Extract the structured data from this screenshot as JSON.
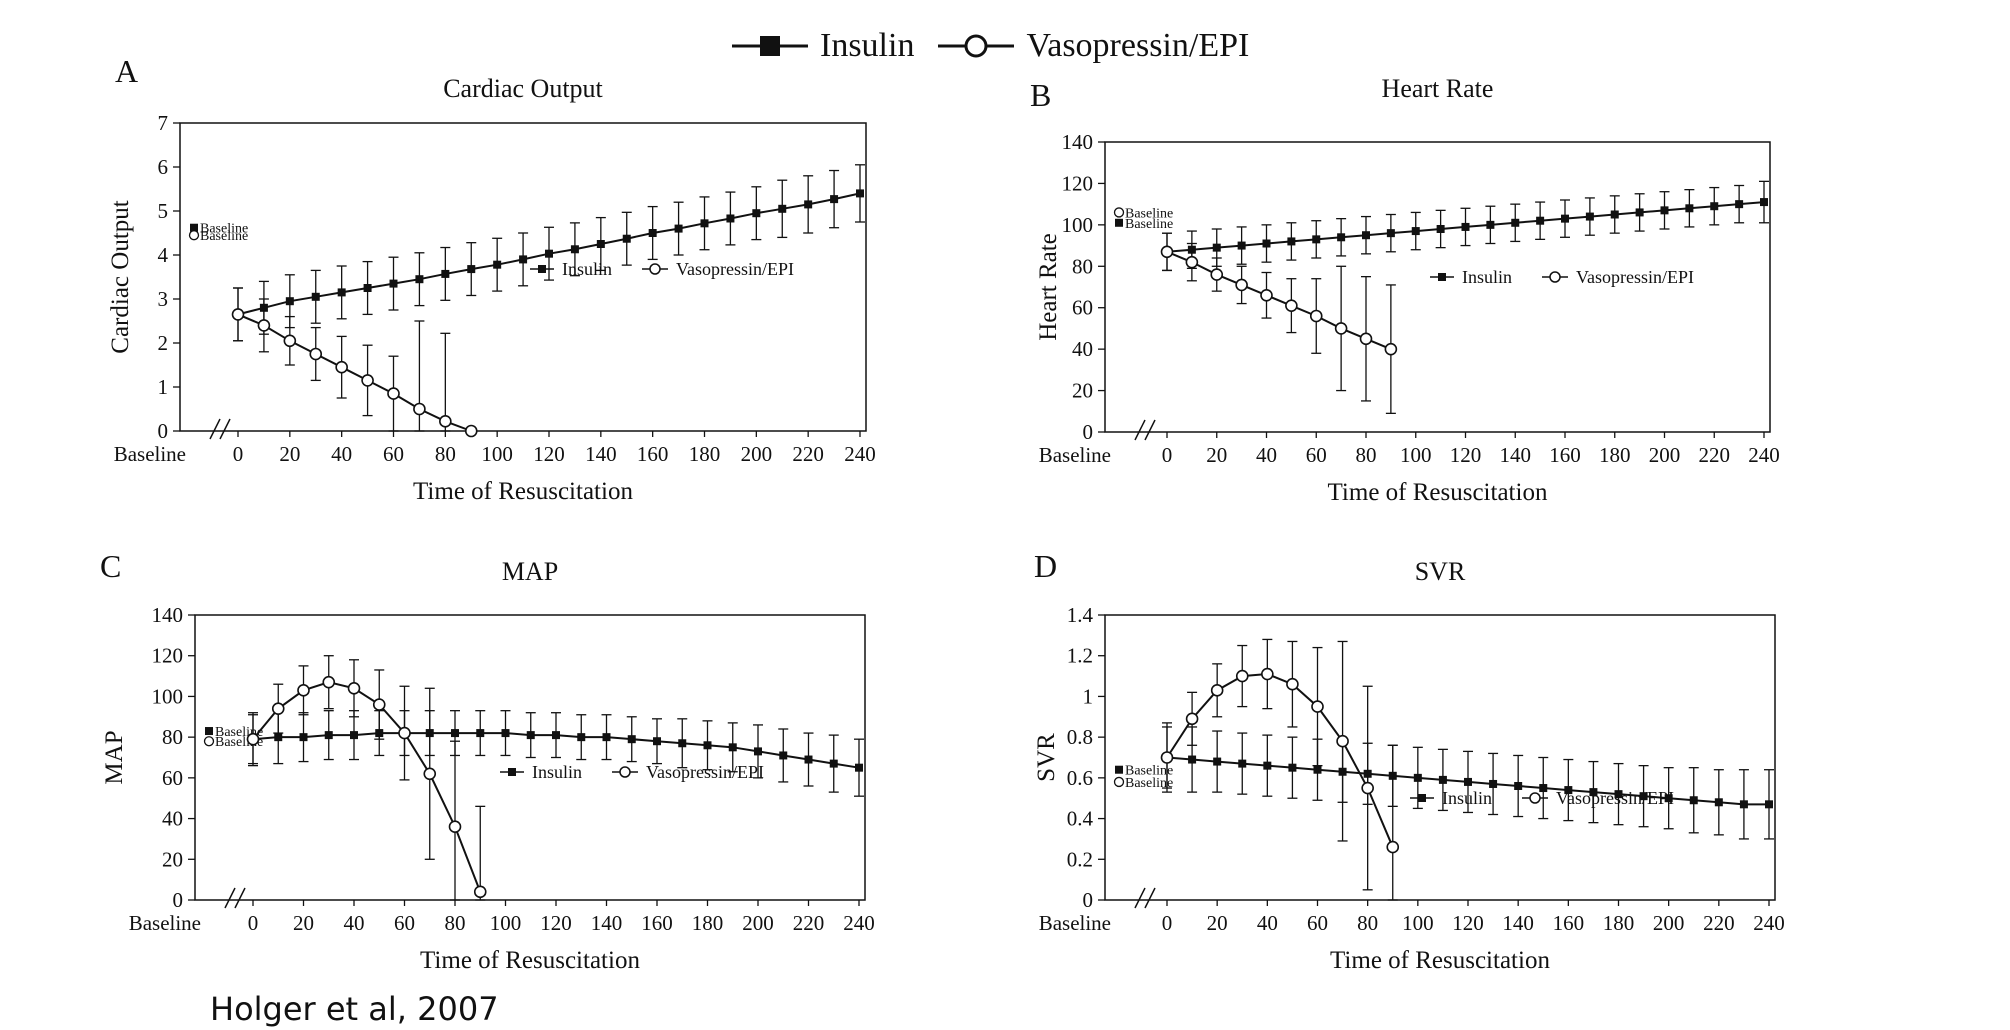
{
  "legend": {
    "insulin_label": "Insulin",
    "vaso_label": "Vasopressin/EPI"
  },
  "source": "Holger et al, 2007",
  "colors": {
    "line": "#111111",
    "background": "#ffffff"
  },
  "chart_data": [
    {
      "letter": "A",
      "type": "line",
      "title": "Cardiac Output",
      "ylabel": "Cardiac Output",
      "xlabel": "Time of Resuscitation",
      "ylim": [
        0,
        7
      ],
      "yticks": [
        0,
        1,
        2,
        3,
        4,
        5,
        6,
        7
      ],
      "xlim": [
        0,
        240
      ],
      "xticks": [
        0,
        20,
        40,
        60,
        80,
        100,
        120,
        140,
        160,
        180,
        200,
        220,
        240
      ],
      "baseline_tick_label": "Baseline",
      "baseline_points": {
        "label": "Baseline",
        "insulin": 4.62,
        "vaso": 4.45
      },
      "inline_legend": {
        "insulin": "Insulin",
        "vaso": "Vasopressin/EPI",
        "position": "right-middle"
      },
      "series": [
        {
          "name": "Insulin",
          "marker": "filled-square",
          "x": [
            0,
            10,
            20,
            30,
            40,
            50,
            60,
            70,
            80,
            90,
            100,
            110,
            120,
            130,
            140,
            150,
            160,
            170,
            180,
            190,
            200,
            210,
            220,
            230,
            240
          ],
          "y": [
            2.65,
            2.8,
            2.95,
            3.05,
            3.15,
            3.25,
            3.35,
            3.45,
            3.57,
            3.68,
            3.78,
            3.9,
            4.03,
            4.13,
            4.25,
            4.37,
            4.5,
            4.6,
            4.72,
            4.83,
            4.95,
            5.05,
            5.15,
            5.27,
            5.4
          ],
          "err": [
            0.6,
            0.6,
            0.6,
            0.6,
            0.6,
            0.6,
            0.6,
            0.6,
            0.6,
            0.6,
            0.6,
            0.6,
            0.6,
            0.6,
            0.6,
            0.6,
            0.6,
            0.6,
            0.6,
            0.6,
            0.6,
            0.65,
            0.65,
            0.65,
            0.65
          ]
        },
        {
          "name": "Vasopressin/EPI",
          "marker": "open-circle",
          "x": [
            0,
            10,
            20,
            30,
            40,
            50,
            60,
            70,
            80,
            90
          ],
          "y": [
            2.65,
            2.4,
            2.05,
            1.75,
            1.45,
            1.15,
            0.85,
            0.5,
            0.22,
            0.0
          ],
          "err": [
            0.6,
            0.6,
            0.55,
            0.6,
            0.7,
            0.8,
            0.85,
            2.0,
            2.0,
            0
          ]
        }
      ]
    },
    {
      "letter": "B",
      "type": "line",
      "title": "Heart Rate",
      "ylabel": "Heart Rate",
      "xlabel": "Time of Resuscitation",
      "ylim": [
        0,
        140
      ],
      "yticks": [
        0,
        20,
        40,
        60,
        80,
        100,
        120,
        140
      ],
      "xlim": [
        0,
        240
      ],
      "xticks": [
        0,
        20,
        40,
        60,
        80,
        100,
        120,
        140,
        160,
        180,
        200,
        220,
        240
      ],
      "baseline_tick_label": "Baseline",
      "baseline_points": {
        "label": "Baseline",
        "insulin": 101,
        "vaso": 106
      },
      "inline_legend": {
        "insulin": "Insulin",
        "vaso": "Vasopressin/EPI",
        "position": "right-middle"
      },
      "series": [
        {
          "name": "Insulin",
          "marker": "filled-square",
          "x": [
            0,
            10,
            20,
            30,
            40,
            50,
            60,
            70,
            80,
            90,
            100,
            110,
            120,
            130,
            140,
            150,
            160,
            170,
            180,
            190,
            200,
            210,
            220,
            230,
            240
          ],
          "y": [
            87,
            88,
            89,
            90,
            91,
            92,
            93,
            94,
            95,
            96,
            97,
            98,
            99,
            100,
            101,
            102,
            103,
            104,
            105,
            106,
            107,
            108,
            109,
            110,
            111
          ],
          "err": [
            9,
            9,
            9,
            9,
            9,
            9,
            9,
            9,
            9,
            9,
            9,
            9,
            9,
            9,
            9,
            9,
            9,
            9,
            9,
            9,
            9,
            9,
            9,
            9,
            10
          ]
        },
        {
          "name": "Vasopressin/EPI",
          "marker": "open-circle",
          "x": [
            0,
            10,
            20,
            30,
            40,
            50,
            60,
            70,
            80,
            90
          ],
          "y": [
            87,
            82,
            76,
            71,
            66,
            61,
            56,
            50,
            45,
            40
          ],
          "err": [
            9,
            9,
            8,
            9,
            11,
            13,
            18,
            30,
            30,
            31
          ]
        }
      ]
    },
    {
      "letter": "C",
      "type": "line",
      "title": "MAP",
      "ylabel": "MAP",
      "xlabel": "Time of Resuscitation",
      "ylim": [
        0,
        140
      ],
      "yticks": [
        0,
        20,
        40,
        60,
        80,
        100,
        120,
        140
      ],
      "xlim": [
        0,
        240
      ],
      "xticks": [
        0,
        20,
        40,
        60,
        80,
        100,
        120,
        140,
        160,
        180,
        200,
        220,
        240
      ],
      "baseline_tick_label": "Baseline",
      "baseline_points": {
        "label": "Baseline",
        "insulin": 83,
        "vaso": 78
      },
      "inline_legend": {
        "insulin": "Insulin",
        "vaso": "Vasopressin/EPI",
        "position": "right-middle"
      },
      "series": [
        {
          "name": "Insulin",
          "marker": "filled-square",
          "x": [
            0,
            10,
            20,
            30,
            40,
            50,
            60,
            70,
            80,
            90,
            100,
            110,
            120,
            130,
            140,
            150,
            160,
            170,
            180,
            190,
            200,
            210,
            220,
            230,
            240
          ],
          "y": [
            79,
            80,
            80,
            81,
            81,
            82,
            82,
            82,
            82,
            82,
            82,
            81,
            81,
            80,
            80,
            79,
            78,
            77,
            76,
            75,
            73,
            71,
            69,
            67,
            65
          ],
          "err": [
            13,
            13,
            12,
            12,
            12,
            11,
            11,
            11,
            11,
            11,
            11,
            11,
            11,
            11,
            11,
            11,
            11,
            12,
            12,
            12,
            13,
            13,
            13,
            14,
            14
          ]
        },
        {
          "name": "Vasopressin/EPI",
          "marker": "open-circle",
          "x": [
            0,
            10,
            20,
            30,
            40,
            50,
            60,
            70,
            80,
            90
          ],
          "y": [
            79,
            94,
            103,
            107,
            104,
            96,
            82,
            62,
            36,
            4
          ],
          "err": [
            12,
            12,
            12,
            13,
            14,
            17,
            23,
            42,
            42,
            42
          ]
        }
      ]
    },
    {
      "letter": "D",
      "type": "line",
      "title": "SVR",
      "ylabel": "SVR",
      "xlabel": "Time of Resuscitation",
      "ylim": [
        0,
        1.4
      ],
      "yticks": [
        0,
        0.2,
        0.4,
        0.6,
        0.8,
        1,
        1.2,
        1.4
      ],
      "xlim": [
        0,
        240
      ],
      "xticks": [
        0,
        20,
        40,
        60,
        80,
        100,
        120,
        140,
        160,
        180,
        200,
        220,
        240
      ],
      "baseline_tick_label": "Baseline",
      "baseline_points": {
        "label": "Baseline",
        "insulin": 0.64,
        "vaso": 0.58
      },
      "inline_legend": {
        "insulin": "Insulin",
        "vaso": "Vasopressin/EPI",
        "position": "right-lower"
      },
      "series": [
        {
          "name": "Insulin",
          "marker": "filled-square",
          "x": [
            0,
            10,
            20,
            30,
            40,
            50,
            60,
            70,
            80,
            90,
            100,
            110,
            120,
            130,
            140,
            150,
            160,
            170,
            180,
            190,
            200,
            210,
            220,
            230,
            240
          ],
          "y": [
            0.7,
            0.69,
            0.68,
            0.67,
            0.66,
            0.65,
            0.64,
            0.63,
            0.62,
            0.61,
            0.6,
            0.59,
            0.58,
            0.57,
            0.56,
            0.55,
            0.54,
            0.53,
            0.52,
            0.51,
            0.5,
            0.49,
            0.48,
            0.47,
            0.47
          ],
          "err": [
            0.17,
            0.16,
            0.15,
            0.15,
            0.15,
            0.15,
            0.15,
            0.15,
            0.15,
            0.15,
            0.15,
            0.15,
            0.15,
            0.15,
            0.15,
            0.15,
            0.15,
            0.15,
            0.15,
            0.15,
            0.15,
            0.16,
            0.16,
            0.17,
            0.17
          ]
        },
        {
          "name": "Vasopressin/EPI",
          "marker": "open-circle",
          "x": [
            0,
            10,
            20,
            30,
            40,
            50,
            60,
            70,
            80,
            90
          ],
          "y": [
            0.7,
            0.89,
            1.03,
            1.1,
            1.11,
            1.06,
            0.95,
            0.78,
            0.55,
            0.26
          ],
          "err": [
            0.15,
            0.13,
            0.13,
            0.15,
            0.17,
            0.21,
            0.29,
            0.49,
            0.5,
            0.5
          ]
        }
      ]
    }
  ]
}
